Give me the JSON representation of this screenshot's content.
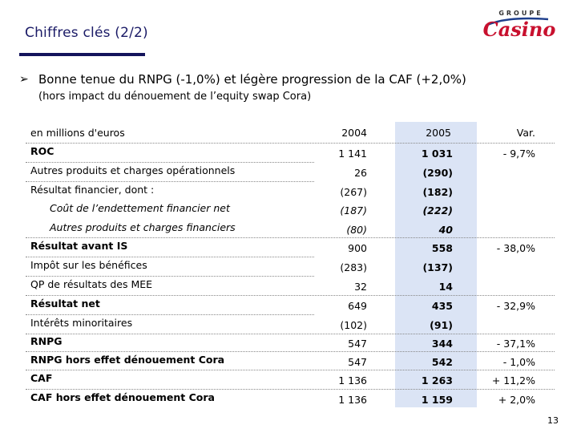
{
  "title": "Chiffres clés (2/2)",
  "logo": {
    "top_text": "GROUPE",
    "brand_text": "Casino",
    "brand_color": "#c8102e",
    "accent_color": "#1e3f8c"
  },
  "bullet": {
    "main": "Bonne tenue du RNPG (-1,0%) et légère progression de la CAF (+2,0%)",
    "sub": "(hors impact du dénouement de l’equity swap Cora)"
  },
  "table": {
    "unit_label": "en millions d'euros",
    "col_2004": "2004",
    "col_2005": "2005",
    "col_var": "Var.",
    "rows": [
      {
        "label": "ROC",
        "v2004": "1 141",
        "v2005": "1 031",
        "var": "- 9,7%"
      },
      {
        "label": "Autres produits et charges opérationnels",
        "v2004": "26",
        "v2005": "(290)",
        "var": ""
      },
      {
        "label": "Résultat financier, dont :",
        "v2004": "(267)",
        "v2005": "(182)",
        "var": ""
      },
      {
        "label": "Coût de l’endettement financier net",
        "v2004": "(187)",
        "v2005": "(222)",
        "var": ""
      },
      {
        "label": "Autres produits et charges financiers",
        "v2004": "(80)",
        "v2005": "40",
        "var": ""
      },
      {
        "label": "Résultat avant IS",
        "v2004": "900",
        "v2005": "558",
        "var": "- 38,0%"
      },
      {
        "label": "Impôt sur les bénéfices",
        "v2004": "(283)",
        "v2005": "(137)",
        "var": ""
      },
      {
        "label": "QP de résultats des MEE",
        "v2004": "32",
        "v2005": "14",
        "var": ""
      },
      {
        "label": "Résultat net",
        "v2004": "649",
        "v2005": "435",
        "var": "- 32,9%"
      },
      {
        "label": "Intérêts minoritaires",
        "v2004": "(102)",
        "v2005": "(91)",
        "var": ""
      },
      {
        "label": "RNPG",
        "v2004": "547",
        "v2005": "344",
        "var": "- 37,1%"
      },
      {
        "label": "RNPG hors effet dénouement Cora",
        "v2004": "547",
        "v2005": "542",
        "var": "- 1,0%"
      },
      {
        "label": "CAF",
        "v2004": "1 136",
        "v2005": "1 263",
        "var": "+ 11,2%"
      },
      {
        "label": "CAF hors effet dénouement Cora",
        "v2004": "1 136",
        "v2005": "1 159",
        "var": "+ 2,0%"
      }
    ]
  },
  "page_number": "13"
}
